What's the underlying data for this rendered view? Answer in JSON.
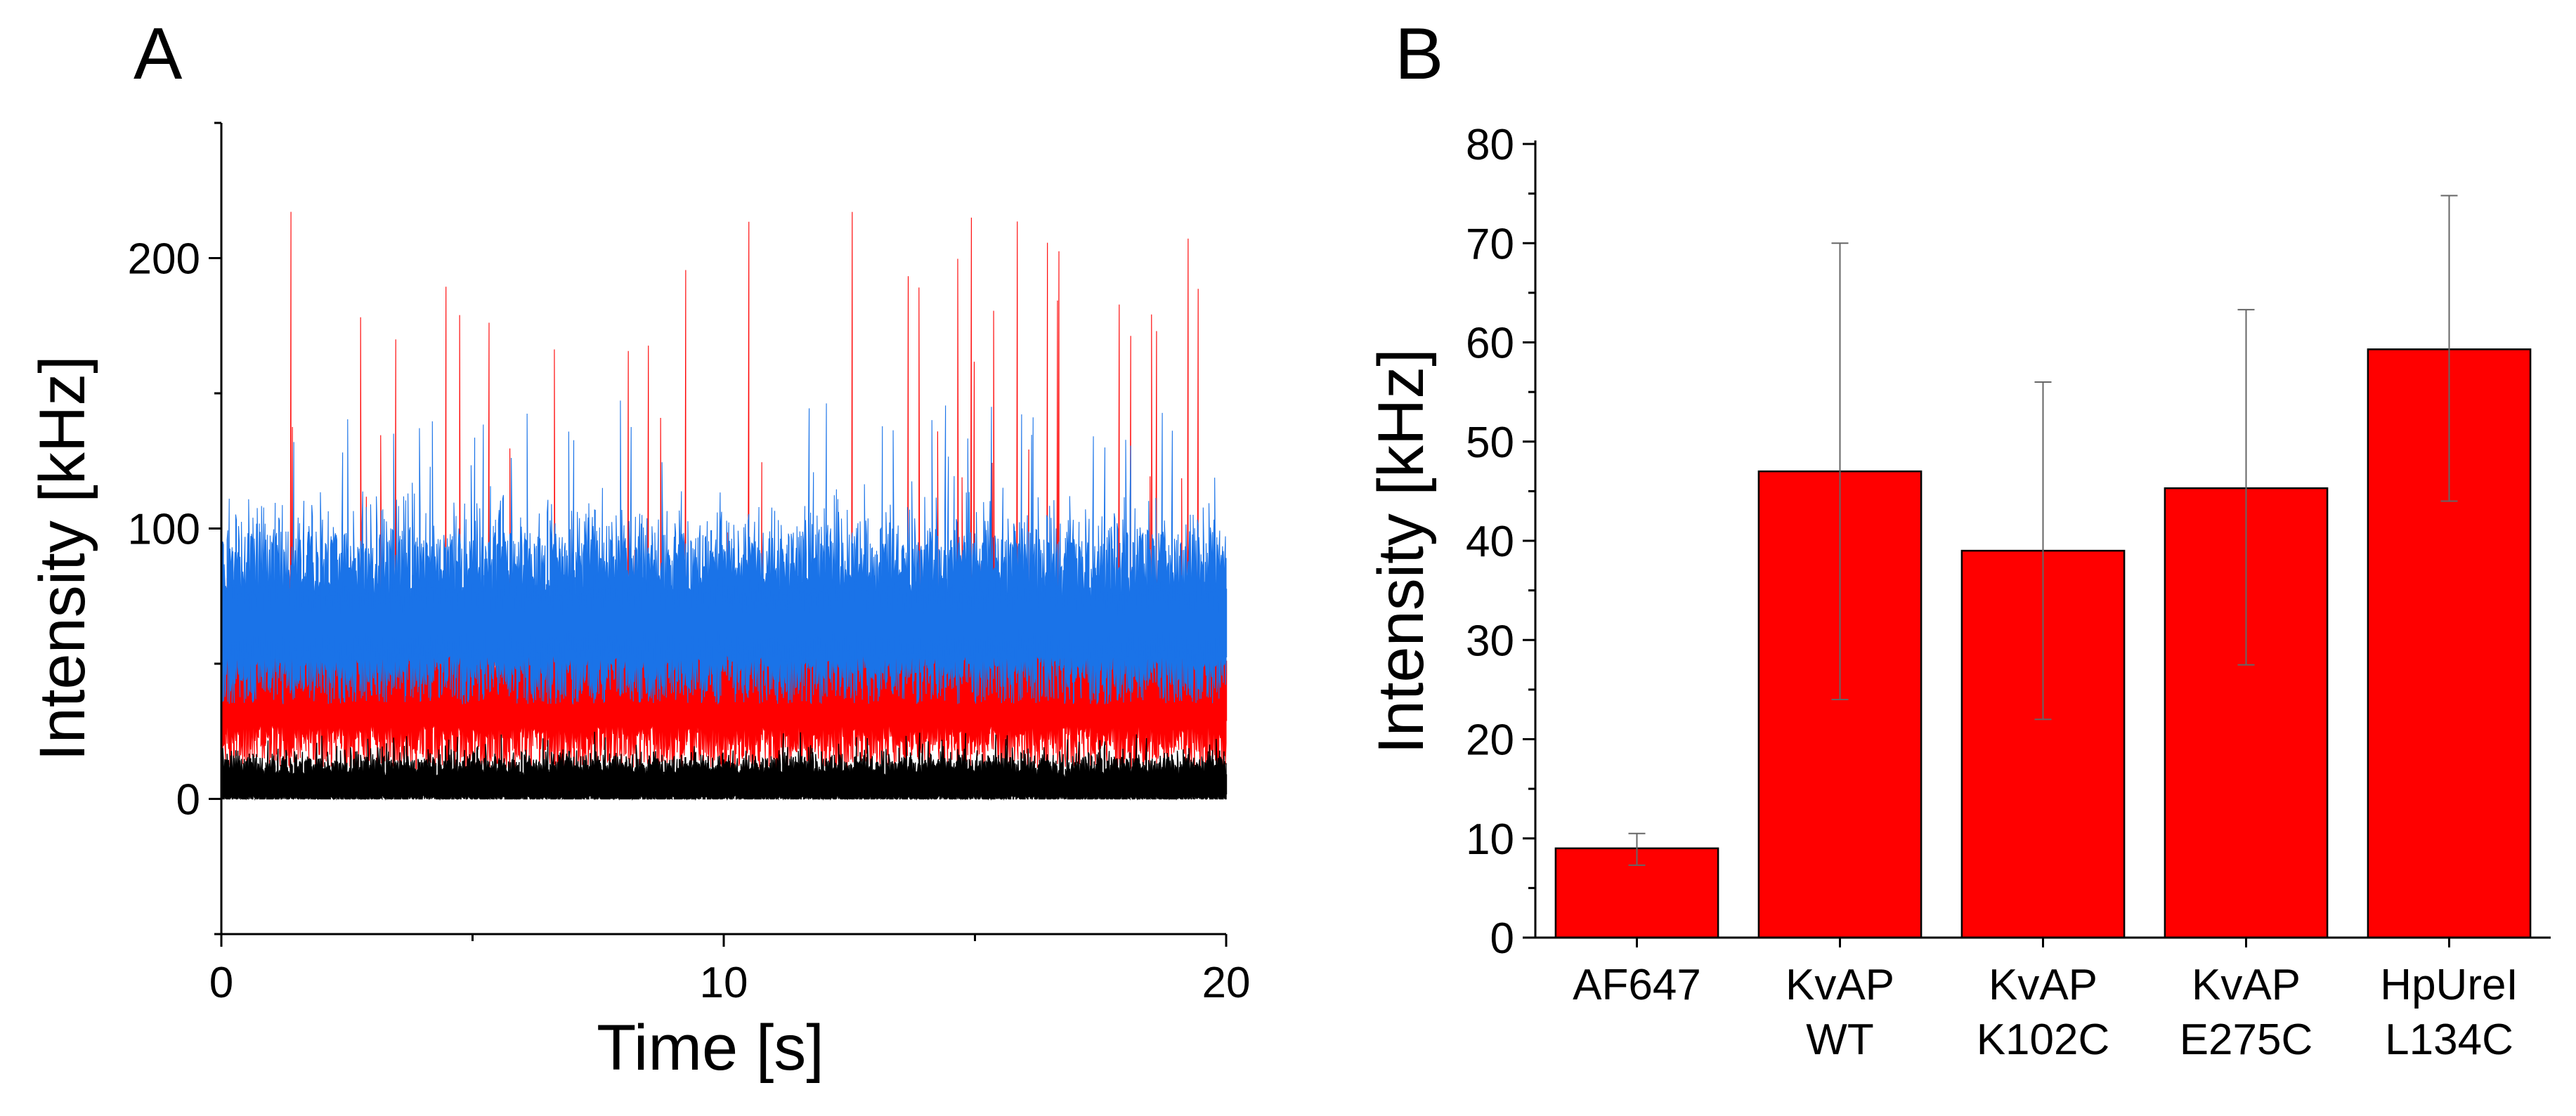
{
  "chart_data": [
    {
      "panel": "A",
      "type": "line",
      "title": "",
      "xlabel": "Time [s]",
      "ylabel": "Intensity [kHz]",
      "xlim": [
        0,
        20
      ],
      "ylim": [
        -50,
        250
      ],
      "xticks": [
        "0",
        "10",
        "20"
      ],
      "yticks": [
        "0",
        "100",
        "200"
      ],
      "xtick_values": [
        0,
        10,
        20
      ],
      "ytick_values": [
        0,
        100,
        200
      ],
      "series": [
        {
          "name": "red trace",
          "color": "#ff0000",
          "mean": 38,
          "spread": 18,
          "spike_max": 222
        },
        {
          "name": "blue trace",
          "color": "#1a73e8",
          "mean": 65,
          "spread": 20,
          "spike_max": 148
        },
        {
          "name": "black trace",
          "color": "#000000",
          "mean": 5,
          "spread": 6,
          "spike_max": 25
        }
      ]
    },
    {
      "panel": "B",
      "type": "bar",
      "title": "",
      "xlabel": "",
      "ylabel": "Intensity [kHz]",
      "ylim": [
        0,
        80
      ],
      "yticks": [
        "0",
        "10",
        "20",
        "30",
        "40",
        "50",
        "60",
        "70",
        "80"
      ],
      "ytick_values": [
        0,
        10,
        20,
        30,
        40,
        50,
        60,
        70,
        80
      ],
      "categories": [
        [
          "AF647"
        ],
        [
          "KvAP",
          "WT"
        ],
        [
          "KvAP",
          "K102C"
        ],
        [
          "KvAP",
          "E275C"
        ],
        [
          "HpUreI",
          "L134C"
        ]
      ],
      "values": [
        9,
        47,
        39,
        45.3,
        59.3
      ],
      "errors_low": [
        7.3,
        24,
        22,
        27.5,
        44
      ],
      "errors_high": [
        10.5,
        70,
        56,
        63.3,
        74.8
      ],
      "bar_color": "#ff0000"
    }
  ]
}
